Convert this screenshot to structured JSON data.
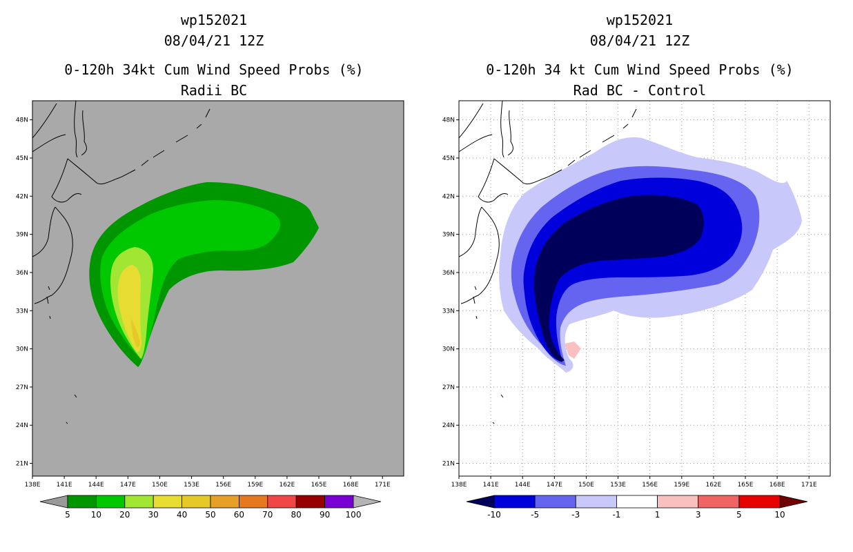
{
  "chart_data": [
    {
      "type": "heatmap",
      "id": "left",
      "title_lines": [
        "wp152021",
        "08/04/21 12Z",
        "0-120h 34kt Cum Wind Speed Probs (%)",
        "Radii BC"
      ],
      "x_ticks": [
        "138E",
        "141E",
        "144E",
        "147E",
        "150E",
        "153E",
        "156E",
        "159E",
        "162E",
        "165E",
        "168E",
        "171E"
      ],
      "y_ticks": [
        "48N",
        "45N",
        "42N",
        "39N",
        "36N",
        "33N",
        "30N",
        "27N",
        "24N",
        "21N"
      ],
      "xlim": [
        138,
        173
      ],
      "ylim": [
        20,
        49.5
      ],
      "colorbar": {
        "labels": [
          "5",
          "10",
          "20",
          "30",
          "40",
          "50",
          "60",
          "70",
          "80",
          "90",
          "100"
        ],
        "colors": [
          "#9a9a9a",
          "#009600",
          "#00c800",
          "#a0e632",
          "#e6dc32",
          "#e6c828",
          "#e6a028",
          "#e67820",
          "#f04646",
          "#960000",
          "#7800d2",
          "#b4b4b4"
        ]
      }
    },
    {
      "type": "heatmap",
      "id": "right",
      "title_lines": [
        "wp152021",
        "08/04/21 12Z",
        "0-120h 34 kt Cum Wind Speed Probs (%)",
        "Rad BC - Control"
      ],
      "x_ticks": [
        "138E",
        "141E",
        "144E",
        "147E",
        "150E",
        "153E",
        "156E",
        "159E",
        "162E",
        "165E",
        "168E",
        "171E"
      ],
      "y_ticks": [
        "48N",
        "45N",
        "42N",
        "39N",
        "36N",
        "33N",
        "30N",
        "27N",
        "24N",
        "21N"
      ],
      "xlim": [
        138,
        173
      ],
      "ylim": [
        20,
        49.5
      ],
      "colorbar": {
        "labels": [
          "-10",
          "-5",
          "-3",
          "-1",
          "1",
          "3",
          "5",
          "10"
        ],
        "colors": [
          "#00005a",
          "#0000dc",
          "#6464f0",
          "#c8c8fa",
          "#ffffff",
          "#fac0c0",
          "#f06464",
          "#e60000",
          "#6e0000"
        ]
      }
    }
  ]
}
